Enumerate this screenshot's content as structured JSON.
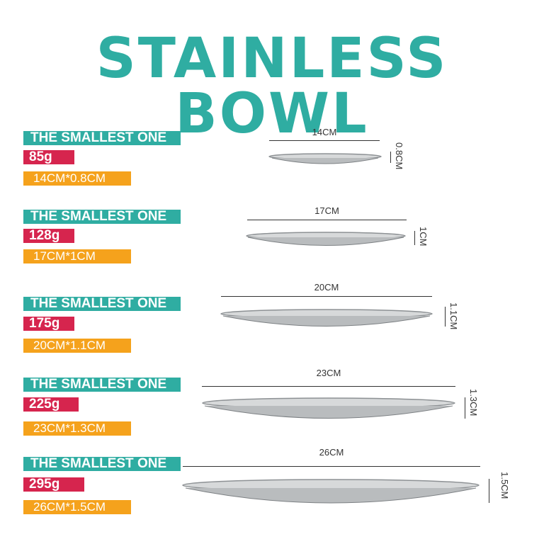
{
  "title": "STAINLESS BOWL",
  "colors": {
    "teal": "#2fada2",
    "crimson": "#d6254e",
    "orange": "#f5a21c"
  },
  "items": [
    {
      "name": "THE SMALLEST ONE",
      "weight": "85g",
      "dims": "14CM*0.8CM",
      "diameter": "14CM",
      "height": "0.8CM"
    },
    {
      "name": "THE SMALLEST ONE",
      "weight": "128g",
      "dims": "17CM*1CM",
      "diameter": "17CM",
      "height": "1CM"
    },
    {
      "name": "THE SMALLEST ONE",
      "weight": "175g",
      "dims": "20CM*1.1CM",
      "diameter": "20CM",
      "height": "1.1CM"
    },
    {
      "name": "THE SMALLEST ONE",
      "weight": "225g",
      "dims": "23CM*1.3CM",
      "diameter": "23CM",
      "height": "1.3CM"
    },
    {
      "name": "THE SMALLEST ONE",
      "weight": "295g",
      "dims": "26CM*1.5CM",
      "diameter": "26CM",
      "height": "1.5CM"
    }
  ]
}
